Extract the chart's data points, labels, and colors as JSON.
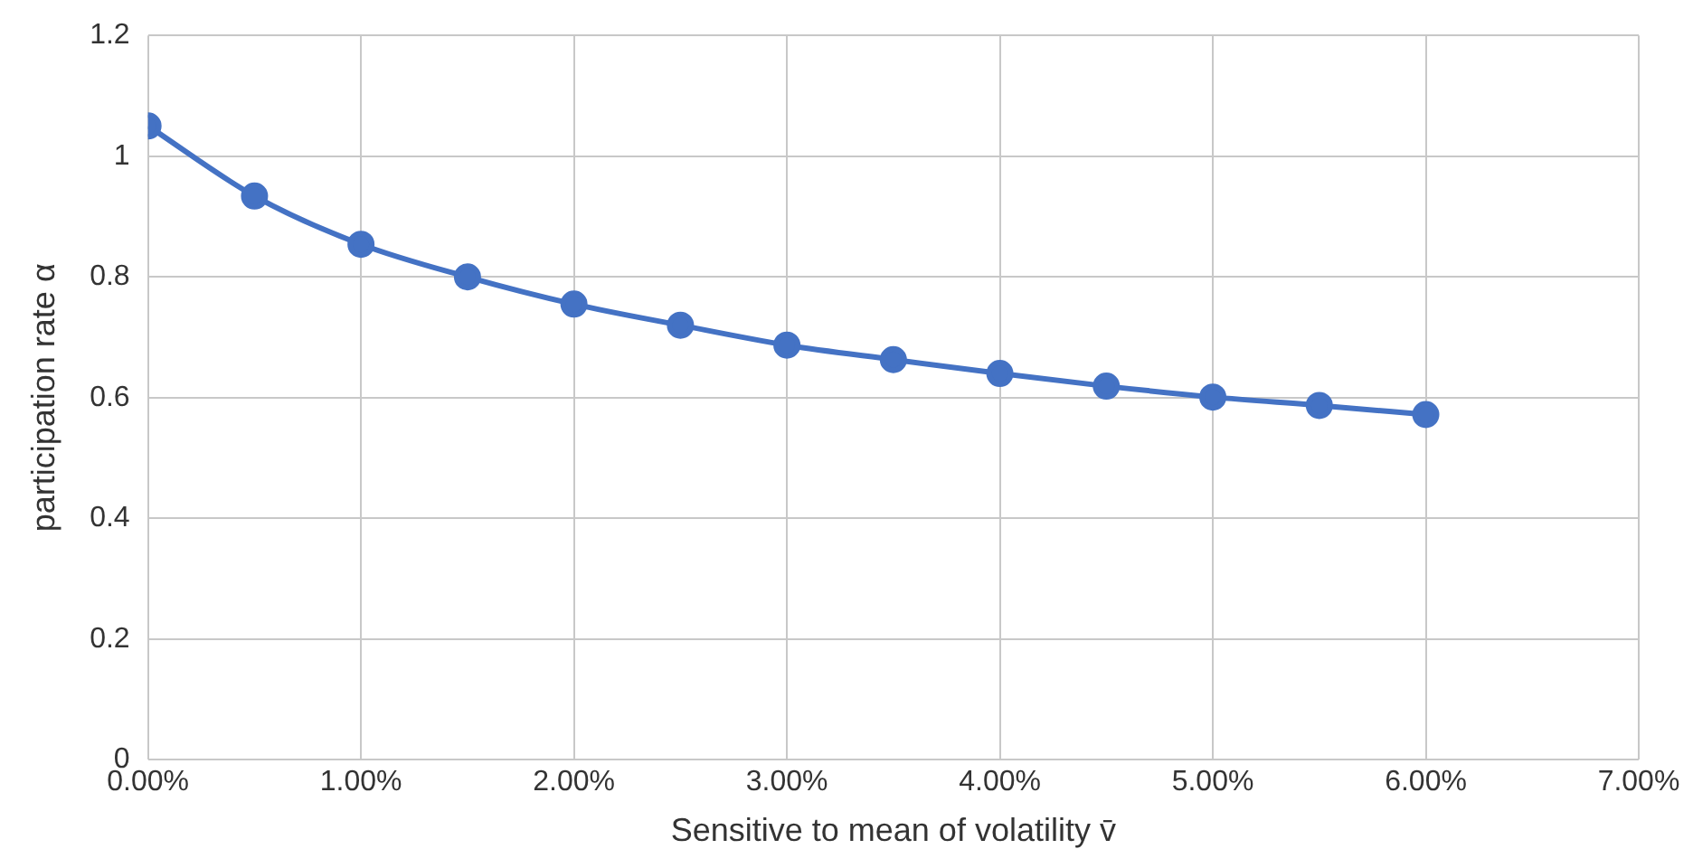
{
  "chart_data": {
    "type": "line",
    "xlabel": "Sensitive to mean of volatility v̄",
    "ylabel": "participation rate α",
    "x": [
      0,
      0.5,
      1,
      1.5,
      2,
      2.5,
      3,
      3.5,
      4,
      4.5,
      5,
      5.5,
      6
    ],
    "series": [
      {
        "color": "#4472c4",
        "values": [
          1.05,
          0.934,
          0.854,
          0.8,
          0.755,
          0.72,
          0.687,
          0.663,
          0.64,
          0.619,
          0.601,
          0.587,
          0.572
        ]
      }
    ],
    "xlim": [
      0,
      7
    ],
    "xticks": [
      {
        "value": 0,
        "label": "0.00%"
      },
      {
        "value": 1,
        "label": "1.00%"
      },
      {
        "value": 2,
        "label": "2.00%"
      },
      {
        "value": 3,
        "label": "3.00%"
      },
      {
        "value": 4,
        "label": "4.00%"
      },
      {
        "value": 5,
        "label": "5.00%"
      },
      {
        "value": 6,
        "label": "6.00%"
      },
      {
        "value": 7,
        "label": "7.00%"
      }
    ],
    "ylim": [
      0,
      1.2
    ],
    "yticks": [
      0,
      0.2,
      0.4,
      0.6,
      0.8,
      1,
      1.2
    ],
    "grid": true,
    "legend": false,
    "marker": "circle",
    "line_style": "solid"
  }
}
